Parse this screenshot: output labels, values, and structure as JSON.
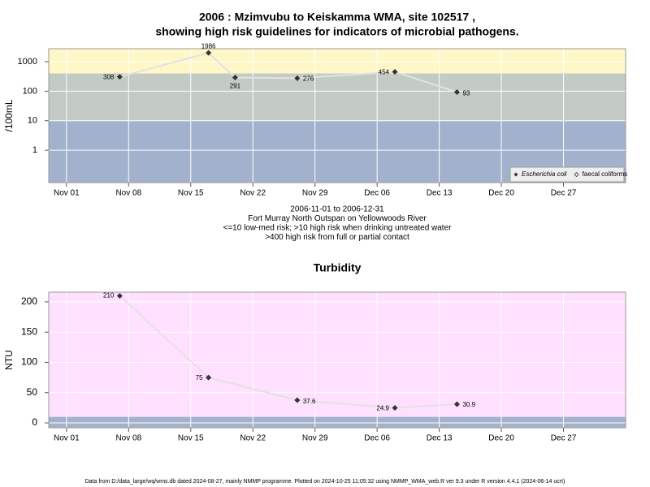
{
  "chart_data": [
    {
      "type": "line",
      "title": [
        "2006 : Mzimvubu to Keiskamma WMA, site 102517 ,",
        "showing high risk guidelines for indicators of microbial pathogens."
      ],
      "ylabel": "/100mL",
      "x": [
        "2006-11-07",
        "2006-11-17",
        "2006-11-20",
        "2006-11-27",
        "2006-12-08",
        "2006-12-15"
      ],
      "series": [
        {
          "name": "Escherichia coli",
          "color": "#333333",
          "values": [
            308,
            1986,
            291,
            276,
            454,
            93
          ]
        },
        {
          "name": "faecal coliforms",
          "color": "#333333",
          "values": [
            null,
            null,
            null,
            null,
            null,
            null
          ]
        }
      ],
      "xlim": [
        "2006-10-30",
        "2007-01-03"
      ],
      "xticks": [
        {
          "value": "2006-11-01",
          "label": "Nov 01"
        },
        {
          "value": "2006-11-08",
          "label": "Nov 08"
        },
        {
          "value": "2006-11-15",
          "label": "Nov 15"
        },
        {
          "value": "2006-11-22",
          "label": "Nov 22"
        },
        {
          "value": "2006-11-29",
          "label": "Nov 29"
        },
        {
          "value": "2006-12-06",
          "label": "Dec 06"
        },
        {
          "value": "2006-12-13",
          "label": "Dec 13"
        },
        {
          "value": "2006-12-20",
          "label": "Dec 20"
        },
        {
          "value": "2006-12-27",
          "label": "Dec 27"
        }
      ],
      "ylim": [
        0.08,
        2750
      ],
      "yticks": [
        1,
        10,
        100,
        1000
      ],
      "log": true,
      "grid": true,
      "bands": [
        {
          "to": 10,
          "color": "#a2b2cc"
        },
        {
          "from": 10,
          "to": 400,
          "color": "#c3cbc4"
        },
        {
          "from": 400,
          "color": "#fff7c8"
        }
      ],
      "legend": "bottom-right",
      "notes": [
        "2006-11-01 to 2006-12-31",
        "Fort Murray North Outspan on Yellowwoods River",
        "<=10 low-med risk; >10 high risk when drinking untreated water",
        ">400 high risk from full or partial contact"
      ]
    },
    {
      "type": "line",
      "title": [
        "Turbidity"
      ],
      "ylabel": "NTU",
      "x": [
        "2006-11-07",
        "2006-11-17",
        "2006-11-27",
        "2006-12-08",
        "2006-12-15"
      ],
      "series": [
        {
          "color": "#333333",
          "values": [
            210,
            75,
            37.6,
            24.9,
            30.9
          ]
        }
      ],
      "xlim": [
        "2006-10-30",
        "2007-01-03"
      ],
      "xticks": [
        {
          "value": "2006-11-01",
          "label": "Nov 01"
        },
        {
          "value": "2006-11-08",
          "label": "Nov 08"
        },
        {
          "value": "2006-11-15",
          "label": "Nov 15"
        },
        {
          "value": "2006-11-22",
          "label": "Nov 22"
        },
        {
          "value": "2006-11-29",
          "label": "Nov 29"
        },
        {
          "value": "2006-12-06",
          "label": "Dec 06"
        },
        {
          "value": "2006-12-13",
          "label": "Dec 13"
        },
        {
          "value": "2006-12-20",
          "label": "Dec 20"
        },
        {
          "value": "2006-12-27",
          "label": "Dec 27"
        }
      ],
      "ylim": [
        -8,
        216
      ],
      "yticks": [
        0,
        50,
        100,
        150,
        200
      ],
      "log": false,
      "grid": true,
      "bands": [
        {
          "to": 10,
          "color": "#a2b2cc"
        },
        {
          "from": 10,
          "color": "#ffe0ff"
        }
      ]
    }
  ],
  "footer": "Data from D:/data_large/wq/wms.db dated 2024-08-27, mainly NMMP programme. Plotted on 2024-10-25 11:05:32 using NMMP_WMA_web.R ver 9.3 under R version 4.4.1 (2024-06-14 ucrt)"
}
